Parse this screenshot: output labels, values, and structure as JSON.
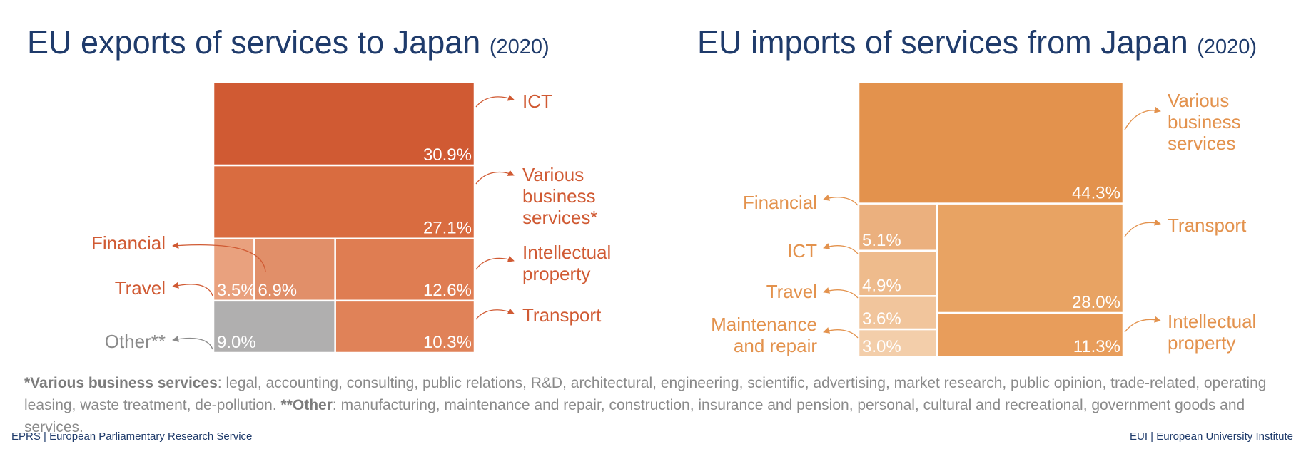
{
  "titles": {
    "exports_main": "EU exports of services to Japan",
    "exports_year": "(2020)",
    "imports_main": "EU imports of services from Japan",
    "imports_year": "(2020)"
  },
  "chart_data": [
    {
      "type": "treemap",
      "title": "EU exports of services to Japan (2020)",
      "unit": "%",
      "items": [
        {
          "label": "ICT",
          "value": 30.9,
          "value_label": "30.9%",
          "color": "#d05a33"
        },
        {
          "label": "Various business services*",
          "value": 27.1,
          "value_label": "27.1%",
          "color": "#d96c40"
        },
        {
          "label": "Financial",
          "value": 6.9,
          "value_label": "6.9%",
          "color": "#e18f69"
        },
        {
          "label": "Travel",
          "value": 3.5,
          "value_label": "3.5%",
          "color": "#e9a17e"
        },
        {
          "label": "Intellectual property",
          "value": 12.6,
          "value_label": "12.6%",
          "color": "#df7d52"
        },
        {
          "label": "Other**",
          "value": 9.0,
          "value_label": "9.0%",
          "color": "#b0afaf"
        },
        {
          "label": "Transport",
          "value": 10.3,
          "value_label": "10.3%",
          "color": "#e08258"
        }
      ]
    },
    {
      "type": "treemap",
      "title": "EU imports of services from Japan (2020)",
      "unit": "%",
      "items": [
        {
          "label": "Various business services",
          "value": 44.3,
          "value_label": "44.3%",
          "color": "#e3924d"
        },
        {
          "label": "Financial",
          "value": 5.1,
          "value_label": "5.1%",
          "color": "#ebb07e"
        },
        {
          "label": "ICT",
          "value": 4.9,
          "value_label": "4.9%",
          "color": "#eebb8c"
        },
        {
          "label": "Travel",
          "value": 3.6,
          "value_label": "3.6%",
          "color": "#f1c59c"
        },
        {
          "label": "Maintenance and repair",
          "value": 3.0,
          "value_label": "3.0%",
          "color": "#f3ceaa"
        },
        {
          "label": "Transport",
          "value": 28.0,
          "value_label": "28.0%",
          "color": "#e8a363"
        },
        {
          "label": "Intellectual property",
          "value": 11.3,
          "value_label": "11.3%",
          "color": "#e89d5b"
        }
      ]
    }
  ],
  "callouts": {
    "exports": {
      "ict": [
        "ICT"
      ],
      "business": [
        "Various",
        "business",
        "services*"
      ],
      "financial": [
        "Financial"
      ],
      "intellectual": [
        "Intellectual",
        "property"
      ],
      "travel": [
        "Travel"
      ],
      "transport": [
        "Transport"
      ],
      "other": [
        "Other**"
      ]
    },
    "imports": {
      "business": [
        "Various",
        "business",
        "services"
      ],
      "financial": [
        "Financial"
      ],
      "ict": [
        "ICT"
      ],
      "transport": [
        "Transport"
      ],
      "travel": [
        "Travel"
      ],
      "maintenance": [
        "Maintenance",
        "and repair"
      ],
      "intellectual": [
        "Intellectual",
        "property"
      ]
    }
  },
  "footnote": {
    "vbs_term": "*Various business services",
    "vbs_text": ": legal, accounting, consulting, public relations, R&D, architectural, engineering,  scientific, advertising, market research, public opinion, trade-related, operating leasing, waste treatment, de-pollution. ",
    "other_term": "**Other",
    "other_text": ": manufacturing, maintenance and repair, construction, insurance and pension, personal, cultural and recreational, government goods and services."
  },
  "credits": {
    "left": "EPRS | European Parliamentary Research Service",
    "right": "EUI | European University Institute"
  },
  "colors": {
    "title": "#1f3b6b",
    "exports_label": "#d05a33",
    "imports_label": "#e3924d",
    "other_label": "#8a8a8a",
    "footnote": "#8a8a8a"
  }
}
